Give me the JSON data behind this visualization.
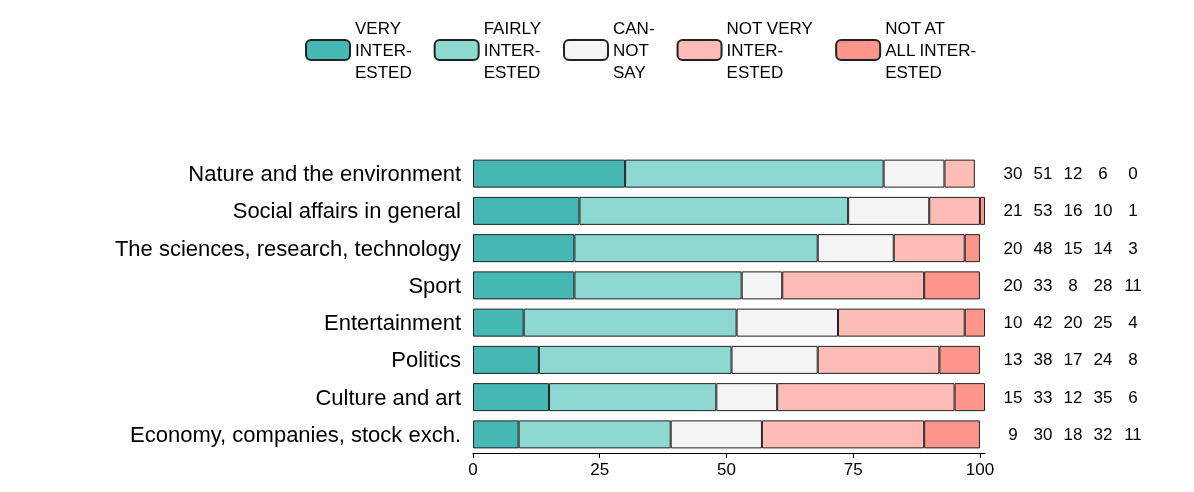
{
  "chart_data": {
    "type": "bar",
    "orientation": "horizontal",
    "stacked": true,
    "data_labels": true,
    "legend": "top",
    "grid": false,
    "categories": [
      "Nature and the environment",
      "Social affairs in general",
      "The sciences, research, technology",
      "Sport",
      "Entertainment",
      "Politics",
      "Culture and art",
      "Economy, companies, stock exch."
    ],
    "xlim": [
      0,
      101
    ],
    "xticks": [
      0,
      25,
      50,
      75,
      100
    ],
    "series": [
      {
        "name": "VERY\nINTER-\nESTED",
        "color": "#45b8b4",
        "values": [
          30,
          21,
          20,
          20,
          10,
          13,
          15,
          9
        ]
      },
      {
        "name": "FAIRLY\nINTER-\nESTED",
        "color": "#8ed8d2",
        "values": [
          51,
          53,
          48,
          33,
          42,
          38,
          33,
          30
        ]
      },
      {
        "name": "CAN-\nNOT\nSAY",
        "color": "#f4f4f4",
        "values": [
          12,
          16,
          15,
          8,
          20,
          17,
          12,
          18
        ]
      },
      {
        "name": "NOT VERY\nINTER-\nESTED",
        "color": "#fdbcb5",
        "values": [
          6,
          10,
          14,
          28,
          25,
          24,
          35,
          32
        ]
      },
      {
        "name": "NOT AT\nALL INTER-\nESTED",
        "color": "#fc958c",
        "values": [
          0,
          1,
          3,
          11,
          4,
          8,
          6,
          11
        ]
      }
    ]
  }
}
